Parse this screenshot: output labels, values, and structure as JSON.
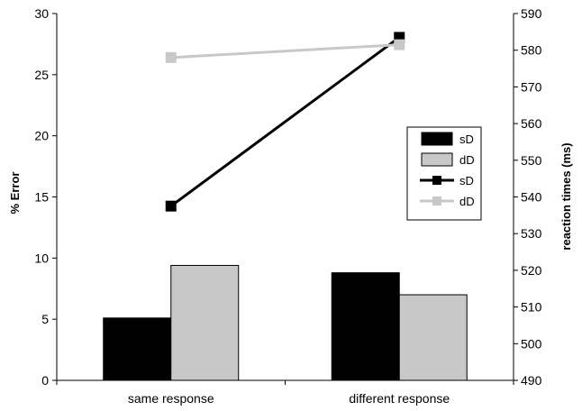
{
  "chart_data": {
    "type": "bar",
    "categories": [
      "same response",
      "different response"
    ],
    "y_left": {
      "label": "% Error",
      "range": [
        0,
        30
      ],
      "ticks": [
        "0",
        "5",
        "10",
        "15",
        "20",
        "25",
        "30"
      ]
    },
    "y_right": {
      "label": "reaction times (ms)",
      "range": [
        490,
        590
      ],
      "ticks": [
        "490",
        "500",
        "510",
        "520",
        "530",
        "540",
        "550",
        "560",
        "570",
        "580",
        "590"
      ]
    },
    "bar_series": [
      {
        "name": "sD",
        "axis": "left",
        "color": "#000000",
        "values": [
          5.1,
          8.8
        ]
      },
      {
        "name": "dD",
        "axis": "left",
        "color": "#c8c8c8",
        "values": [
          9.4,
          7.0
        ]
      }
    ],
    "line_series": [
      {
        "name": "sD",
        "axis": "right",
        "color": "#000000",
        "values": [
          537.5,
          583.5
        ]
      },
      {
        "name": "dD",
        "axis": "right",
        "color": "#c8c8c8",
        "values": [
          578.0,
          581.5
        ]
      }
    ],
    "legend": {
      "position": "right",
      "entries": [
        {
          "label": "sD",
          "kind": "bar",
          "color": "#000000"
        },
        {
          "label": "dD",
          "kind": "bar",
          "color": "#c8c8c8"
        },
        {
          "label": "sD",
          "kind": "line",
          "color": "#000000"
        },
        {
          "label": "dD",
          "kind": "line",
          "color": "#c8c8c8"
        }
      ]
    },
    "grid": false
  }
}
